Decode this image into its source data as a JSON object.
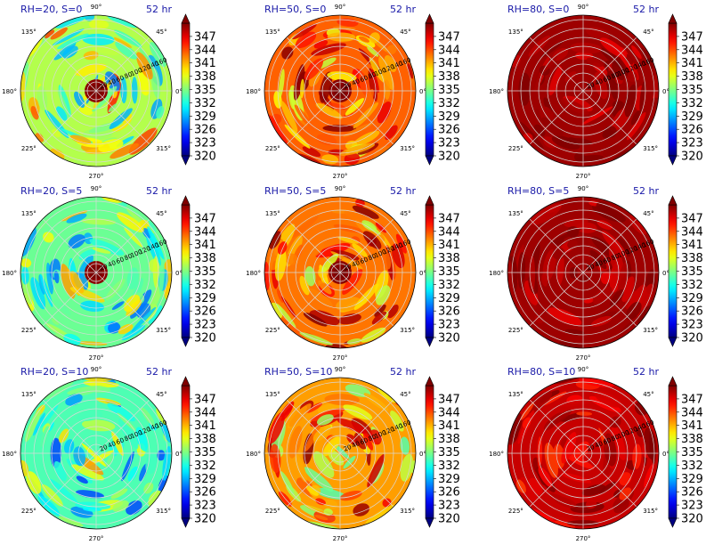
{
  "chart_data": {
    "type": "heatmap",
    "time_label": "52 hr",
    "colorbar": {
      "ticks": [
        "347",
        "344",
        "341",
        "338",
        "335",
        "332",
        "329",
        "326",
        "323",
        "320"
      ],
      "min": 320,
      "max": 350,
      "colormap": "jet",
      "extend": "both"
    },
    "angle_labels": [
      "90°",
      "45°",
      "0°",
      "315°",
      "270°",
      "225°",
      "180°",
      "135°"
    ],
    "radial_labels": [
      "20",
      "40",
      "60",
      "80",
      "100",
      "120",
      "140",
      "160"
    ],
    "panels": [
      {
        "title": "RH=20, S=0",
        "rh": 20,
        "s": 0,
        "level": 0.55,
        "variability": 0.3,
        "eye": true
      },
      {
        "title": "RH=50, S=0",
        "rh": 50,
        "s": 0,
        "level": 0.78,
        "variability": 0.22,
        "eye": true
      },
      {
        "title": "RH=80, S=0",
        "rh": 80,
        "s": 0,
        "level": 0.97,
        "variability": 0.08,
        "eye": false
      },
      {
        "title": "RH=20, S=5",
        "rh": 20,
        "s": 5,
        "level": 0.48,
        "variability": 0.25,
        "eye": true
      },
      {
        "title": "RH=50, S=5",
        "rh": 50,
        "s": 5,
        "level": 0.76,
        "variability": 0.24,
        "eye": true
      },
      {
        "title": "RH=80, S=5",
        "rh": 80,
        "s": 5,
        "level": 0.97,
        "variability": 0.08,
        "eye": false
      },
      {
        "title": "RH=20, S=10",
        "rh": 20,
        "s": 10,
        "level": 0.45,
        "variability": 0.28,
        "eye": false
      },
      {
        "title": "RH=50, S=10",
        "rh": 50,
        "s": 10,
        "level": 0.72,
        "variability": 0.28,
        "eye": false
      },
      {
        "title": "RH=80, S=10",
        "rh": 80,
        "s": 10,
        "level": 0.93,
        "variability": 0.12,
        "eye": false
      }
    ]
  }
}
